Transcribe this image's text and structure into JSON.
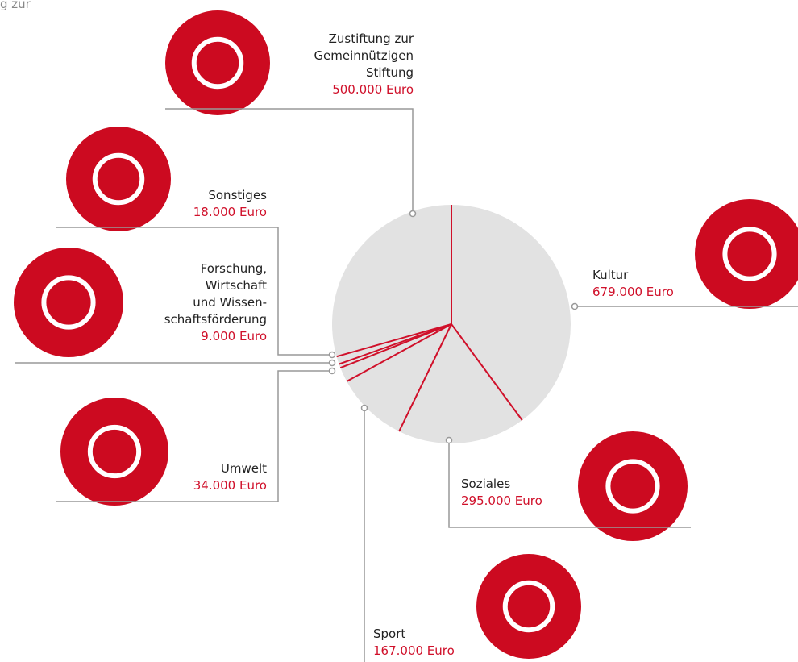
{
  "chart_data": {
    "type": "pie",
    "title": "g zur",
    "categories": [
      "Kultur",
      "Soziales",
      "Sport",
      "Umwelt",
      "Forschung,\nWirtschaft\nund Wissen-\nschaftsförderung",
      "Sonstiges",
      "Zustiftung zur\nGemeinnützigen\nStiftung"
    ],
    "values": [
      679000,
      295000,
      167000,
      34000,
      9000,
      18000,
      500000
    ],
    "value_labels": [
      "679.000 Euro",
      "295.000 Euro",
      "167.000 Euro",
      "34.000 Euro",
      "9.000 Euro",
      "18.000 Euro",
      "500.000 Euro"
    ],
    "color": "#e2e2e2",
    "separator_color": "#d0102a"
  }
}
